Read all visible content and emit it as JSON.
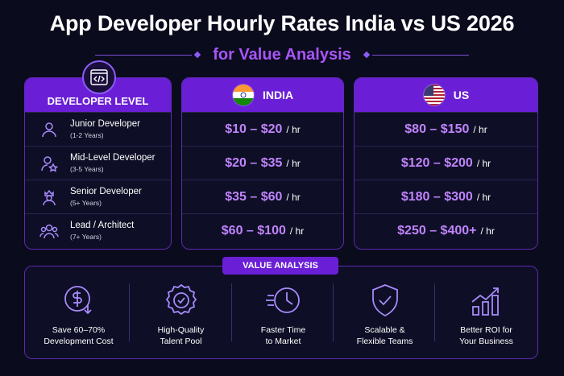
{
  "title": "App Developer Hourly Rates India vs US 2026",
  "subtitle": "for Value Analysis",
  "levels": {
    "header": "DEVELOPER LEVEL",
    "items": [
      {
        "name": "Junior Developer",
        "years": "(1-2 Years)",
        "icon": "user-icon"
      },
      {
        "name": "Mid-Level Developer",
        "years": "(3-5 Years)",
        "icon": "user-star-icon"
      },
      {
        "name": "Senior Developer",
        "years": "(5+ Years)",
        "icon": "user-crown-icon"
      },
      {
        "name": "Lead / Architect",
        "years": "(7+ Years)",
        "icon": "team-icon"
      }
    ]
  },
  "india": {
    "header": "INDIA",
    "unit": "/ hr",
    "rates": [
      "$10 – $20",
      "$20 – $35",
      "$35 – $60",
      "$60 – $100"
    ]
  },
  "us": {
    "header": "US",
    "unit": "/ hr",
    "rates": [
      "$80 – $150",
      "$120 – $200",
      "$180 – $300",
      "$250 – $400+"
    ]
  },
  "value_analysis": {
    "label": "VALUE ANALYSIS",
    "items": [
      {
        "label": "Save 60–70%\nDevelopment Cost",
        "icon": "dollar-down-icon"
      },
      {
        "label": "High-Quality\nTalent Pool",
        "icon": "quality-badge-icon"
      },
      {
        "label": "Faster Time\nto Market",
        "icon": "fast-clock-icon"
      },
      {
        "label": "Scalable &\nFlexible Teams",
        "icon": "shield-check-icon"
      },
      {
        "label": "Better ROI for\nYour Business",
        "icon": "growth-chart-icon"
      }
    ]
  },
  "colors": {
    "accent": "#6a1fd6",
    "rate_text": "#c084fc",
    "background": "#0b0b1e"
  }
}
